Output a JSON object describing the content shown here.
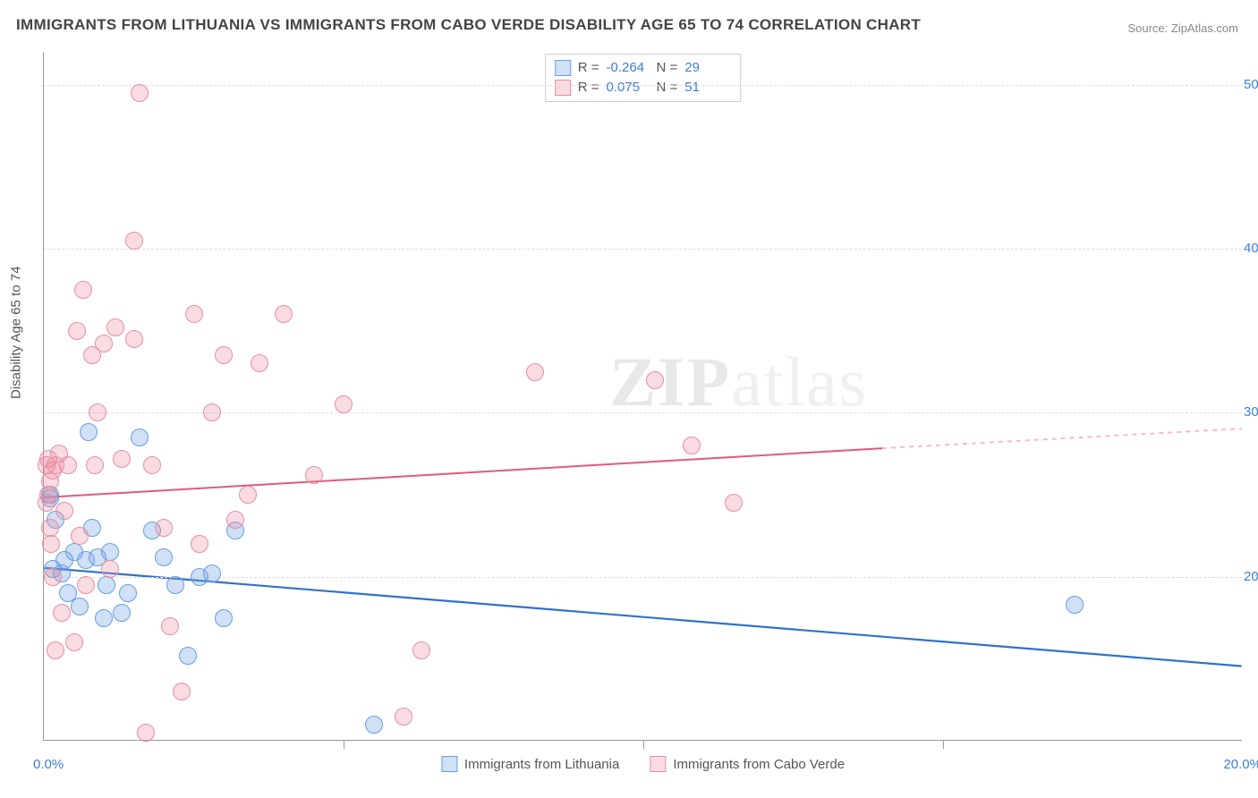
{
  "title": "IMMIGRANTS FROM LITHUANIA VS IMMIGRANTS FROM CABO VERDE DISABILITY AGE 65 TO 74 CORRELATION CHART",
  "source_prefix": "Source: ",
  "source_link": "ZipAtlas.com",
  "ylabel": "Disability Age 65 to 74",
  "watermark_main": "ZIP",
  "watermark_light": "atlas",
  "chart": {
    "type": "scatter-with-regression",
    "background_color": "#ffffff",
    "grid_color": "#dddddd",
    "axis_color": "#999999",
    "text_color": "#555555",
    "value_color": "#3b7dd8",
    "x_min": 0.0,
    "x_max": 20.0,
    "y_min": 10.0,
    "y_max": 52.0,
    "x_ticks_major": [
      0.0,
      20.0
    ],
    "x_ticks_minor_step": 5.0,
    "y_grid": [
      20.0,
      30.0,
      40.0,
      50.0
    ],
    "x_origin_label": "0.0%",
    "x_end_label": "20.0%",
    "y_labels": [
      {
        "v": 20.0,
        "t": "20.0%"
      },
      {
        "v": 30.0,
        "t": "30.0%"
      },
      {
        "v": 40.0,
        "t": "40.0%"
      },
      {
        "v": 50.0,
        "t": "50.0%"
      }
    ],
    "marker_radius": 10,
    "marker_border_width": 1.2,
    "series": [
      {
        "id": "lithuania",
        "label": "Immigrants from Lithuania",
        "fill": "rgba(120,165,225,0.35)",
        "stroke": "#6a9de0",
        "line_color": "#2f71cc",
        "line_width": 2.2,
        "r_label": "R =",
        "r_value": "-0.264",
        "n_label": "N =",
        "n_value": "29",
        "regression": {
          "x1": 0.0,
          "y1": 20.5,
          "x2": 20.0,
          "y2": 14.5
        },
        "points": [
          [
            0.1,
            24.8
          ],
          [
            0.1,
            25.0
          ],
          [
            0.15,
            20.5
          ],
          [
            0.2,
            23.5
          ],
          [
            0.3,
            20.2
          ],
          [
            0.35,
            21.0
          ],
          [
            0.4,
            19.0
          ],
          [
            0.5,
            21.5
          ],
          [
            0.6,
            18.2
          ],
          [
            0.7,
            21.0
          ],
          [
            0.75,
            28.8
          ],
          [
            0.8,
            23.0
          ],
          [
            0.9,
            21.2
          ],
          [
            1.0,
            17.5
          ],
          [
            1.05,
            19.5
          ],
          [
            1.1,
            21.5
          ],
          [
            1.3,
            17.8
          ],
          [
            1.4,
            19.0
          ],
          [
            1.6,
            28.5
          ],
          [
            1.8,
            22.8
          ],
          [
            2.0,
            21.2
          ],
          [
            2.2,
            19.5
          ],
          [
            2.4,
            15.2
          ],
          [
            2.6,
            20.0
          ],
          [
            2.8,
            20.2
          ],
          [
            3.0,
            17.5
          ],
          [
            3.2,
            22.8
          ],
          [
            5.5,
            11.0
          ],
          [
            17.2,
            18.3
          ]
        ]
      },
      {
        "id": "caboverde",
        "label": "Immigrants from Cabo Verde",
        "fill": "rgba(235,140,160,0.30)",
        "stroke": "#e58fa2",
        "line_color": "#e15a7a",
        "line_width": 2.0,
        "r_label": "R =",
        "r_value": "0.075",
        "n_label": "N =",
        "n_value": "51",
        "regression": {
          "x1": 0.0,
          "y1": 24.8,
          "x2": 14.0,
          "y2": 27.8
        },
        "regression_ext": {
          "x1": 14.0,
          "y1": 27.8,
          "x2": 20.0,
          "y2": 29.0
        },
        "points": [
          [
            0.05,
            24.5
          ],
          [
            0.05,
            26.8
          ],
          [
            0.08,
            27.2
          ],
          [
            0.08,
            25.0
          ],
          [
            0.1,
            23.0
          ],
          [
            0.1,
            25.8
          ],
          [
            0.12,
            22.0
          ],
          [
            0.15,
            26.5
          ],
          [
            0.15,
            20.0
          ],
          [
            0.2,
            26.8
          ],
          [
            0.2,
            15.5
          ],
          [
            0.25,
            27.5
          ],
          [
            0.3,
            17.8
          ],
          [
            0.35,
            24.0
          ],
          [
            0.4,
            26.8
          ],
          [
            0.5,
            16.0
          ],
          [
            0.55,
            35.0
          ],
          [
            0.6,
            22.5
          ],
          [
            0.65,
            37.5
          ],
          [
            0.7,
            19.5
          ],
          [
            0.8,
            33.5
          ],
          [
            0.85,
            26.8
          ],
          [
            0.9,
            30.0
          ],
          [
            1.0,
            34.2
          ],
          [
            1.1,
            20.5
          ],
          [
            1.2,
            35.2
          ],
          [
            1.3,
            27.2
          ],
          [
            1.5,
            34.5
          ],
          [
            1.5,
            40.5
          ],
          [
            1.6,
            49.5
          ],
          [
            1.7,
            10.5
          ],
          [
            1.8,
            26.8
          ],
          [
            2.0,
            23.0
          ],
          [
            2.1,
            17.0
          ],
          [
            2.3,
            13.0
          ],
          [
            2.5,
            36.0
          ],
          [
            2.6,
            22.0
          ],
          [
            2.8,
            30.0
          ],
          [
            3.0,
            33.5
          ],
          [
            3.2,
            23.5
          ],
          [
            3.4,
            25.0
          ],
          [
            3.6,
            33.0
          ],
          [
            4.0,
            36.0
          ],
          [
            4.5,
            26.2
          ],
          [
            5.0,
            30.5
          ],
          [
            6.0,
            11.5
          ],
          [
            6.3,
            15.5
          ],
          [
            8.2,
            32.5
          ],
          [
            10.2,
            32.0
          ],
          [
            10.8,
            28.0
          ],
          [
            11.5,
            24.5
          ]
        ]
      }
    ]
  }
}
